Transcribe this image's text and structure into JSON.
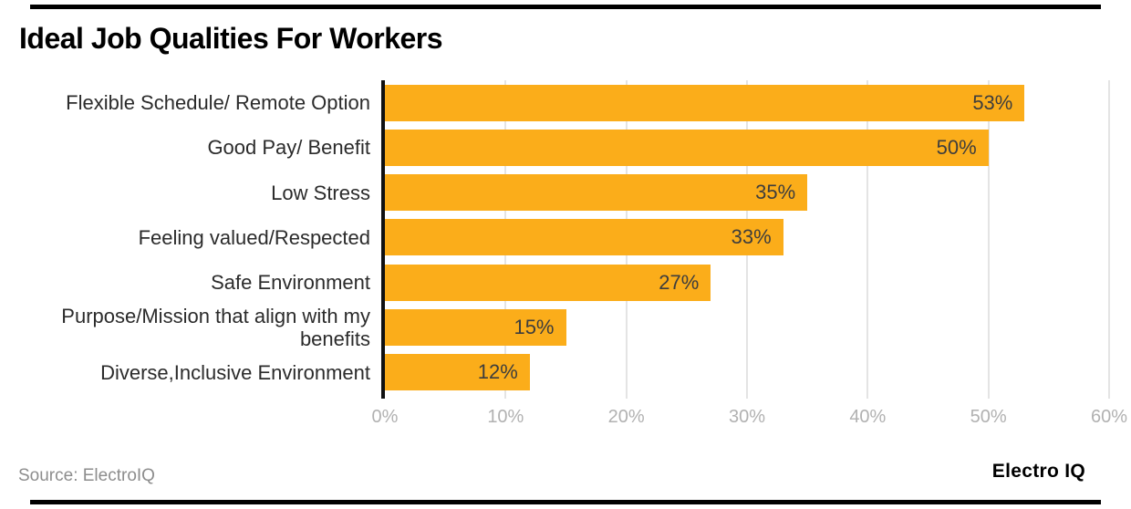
{
  "header": {
    "title": "Ideal Job Qualities For Workers"
  },
  "footer": {
    "source": "Source: ElectroIQ",
    "brand": "Electro IQ"
  },
  "colors": {
    "bar": "#fbad1a",
    "axis_line": "#111111",
    "gridline": "#e4e4e4",
    "tick_label": "#b1b1b1",
    "value_label": "#3d3d3d",
    "category_label": "#2b2b2b",
    "divider_rule": "#000000"
  },
  "chart_data": {
    "type": "bar",
    "orientation": "horizontal",
    "title": "Ideal Job Qualities For Workers",
    "categories": [
      "Flexible Schedule/ Remote Option",
      "Good Pay/ Benefit",
      "Low Stress",
      "Feeling valued/Respected",
      "Safe Environment",
      "Purpose/Mission that align with my benefits",
      "Diverse,Inclusive Environment"
    ],
    "values": [
      53,
      50,
      35,
      33,
      27,
      15,
      12
    ],
    "value_labels": [
      "53%",
      "50%",
      "35%",
      "33%",
      "27%",
      "15%",
      "12%"
    ],
    "x_ticks": [
      "0%",
      "10%",
      "20%",
      "30%",
      "40%",
      "50%",
      "60%"
    ],
    "xlim": [
      0,
      60
    ],
    "xlabel": "",
    "ylabel": "",
    "grid": true,
    "legend": false,
    "bar_label_position": "inside-end"
  }
}
